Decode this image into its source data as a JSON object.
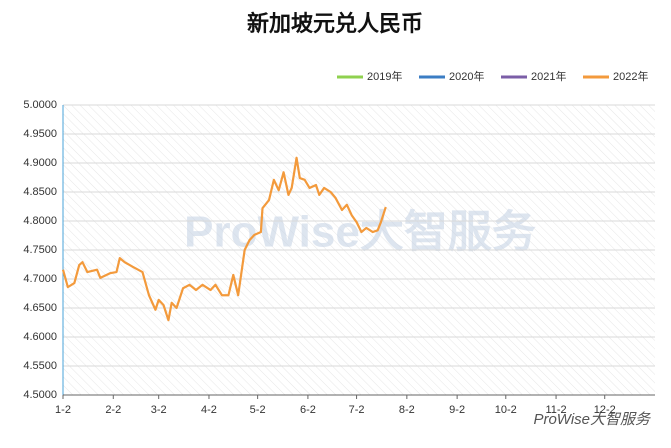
{
  "chart_data": {
    "type": "line",
    "title": "新加坡元兑人民币",
    "watermark": "ProWise大智服务",
    "footer": "ProWise大智服务",
    "legend": "top-right",
    "grid": true,
    "ylim": [
      4.5,
      5.0
    ],
    "yticks": [
      {
        "value": 4.5,
        "label": "4.5000"
      },
      {
        "value": 4.55,
        "label": "4.5500"
      },
      {
        "value": 4.6,
        "label": "4.6000"
      },
      {
        "value": 4.65,
        "label": "4.6500"
      },
      {
        "value": 4.7,
        "label": "4.7000"
      },
      {
        "value": 4.75,
        "label": "4.7500"
      },
      {
        "value": 4.8,
        "label": "4.8000"
      },
      {
        "value": 4.85,
        "label": "4.8500"
      },
      {
        "value": 4.9,
        "label": "4.9000"
      },
      {
        "value": 4.95,
        "label": "4.9500"
      },
      {
        "value": 5.0,
        "label": "5.0000"
      }
    ],
    "xlim": [
      0,
      365
    ],
    "xticks": [
      {
        "value": 0,
        "label": "1-2"
      },
      {
        "value": 31,
        "label": "2-2"
      },
      {
        "value": 59,
        "label": "3-2"
      },
      {
        "value": 90,
        "label": "4-2"
      },
      {
        "value": 120,
        "label": "5-2"
      },
      {
        "value": 151,
        "label": "6-2"
      },
      {
        "value": 181,
        "label": "7-2"
      },
      {
        "value": 212,
        "label": "8-2"
      },
      {
        "value": 243,
        "label": "9-2"
      },
      {
        "value": 273,
        "label": "10-2"
      },
      {
        "value": 304,
        "label": "11-2"
      },
      {
        "value": 334,
        "label": "12-2"
      }
    ],
    "series": [
      {
        "name": "2019年",
        "color": "#8fd14f",
        "x": [],
        "values": []
      },
      {
        "name": "2020年",
        "color": "#3b7dc4",
        "x": [],
        "values": []
      },
      {
        "name": "2021年",
        "color": "#7b5ea7",
        "x": [],
        "values": []
      },
      {
        "name": "2022年",
        "color": "#f39a3c",
        "x": [
          0,
          3,
          7,
          10,
          12,
          15,
          21,
          23,
          29,
          33,
          35,
          38,
          43,
          49,
          53,
          57,
          59,
          62,
          65,
          67,
          70,
          74,
          78,
          82,
          86,
          91,
          94,
          98,
          102,
          105,
          108,
          112,
          115,
          118,
          122,
          123,
          127,
          130,
          133,
          136,
          139,
          141,
          144,
          146,
          149,
          152,
          156,
          158,
          161,
          165,
          168,
          172,
          175,
          178,
          181,
          184,
          187,
          191,
          194,
          196,
          199
        ],
        "values": [
          4.716,
          4.686,
          4.693,
          4.724,
          4.729,
          4.712,
          4.716,
          4.702,
          4.71,
          4.712,
          4.736,
          4.729,
          4.721,
          4.712,
          4.672,
          4.647,
          4.664,
          4.655,
          4.629,
          4.659,
          4.65,
          4.684,
          4.69,
          4.681,
          4.69,
          4.681,
          4.69,
          4.672,
          4.672,
          4.707,
          4.672,
          4.75,
          4.767,
          4.776,
          4.781,
          4.822,
          4.836,
          4.871,
          4.853,
          4.884,
          4.845,
          4.857,
          4.909,
          4.874,
          4.871,
          4.857,
          4.862,
          4.845,
          4.857,
          4.85,
          4.84,
          4.819,
          4.828,
          4.81,
          4.798,
          4.781,
          4.788,
          4.781,
          4.784,
          4.798,
          4.824
        ]
      }
    ]
  }
}
